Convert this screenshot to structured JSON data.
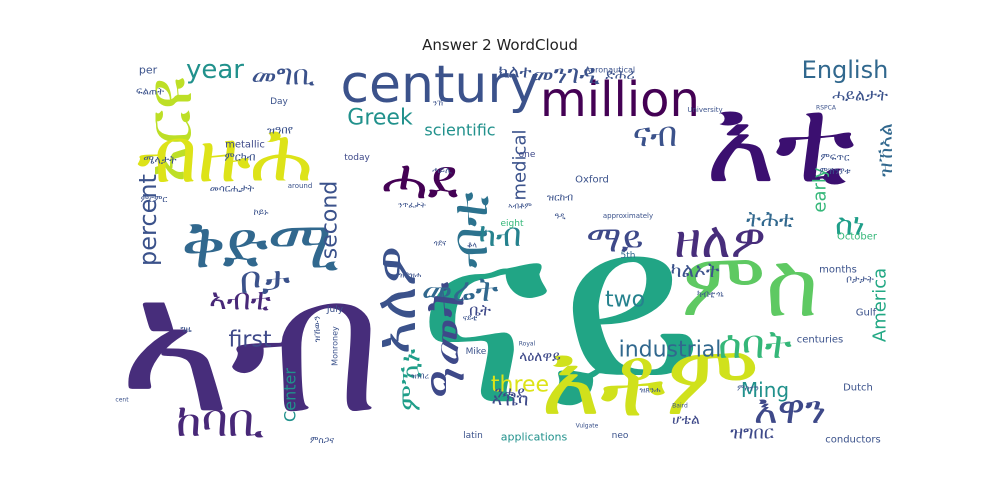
{
  "title": "Answer 2 WordCloud",
  "chart_data": {
    "type": "wordcloud",
    "title": "Answer 2 WordCloud",
    "words": [
      {
        "text": "ናይ",
        "weight": 100,
        "color": "#21a585"
      },
      {
        "text": "እቲ",
        "weight": 46,
        "color": "#3b0f70"
      },
      {
        "text": "ኣብ",
        "weight": 62,
        "color": "#472d7b"
      },
      {
        "text": "እቶም",
        "weight": 40,
        "color": "#d0e11c"
      },
      {
        "text": "ምስ",
        "weight": 34,
        "color": "#5ec962"
      },
      {
        "text": "century",
        "weight": 32,
        "color": "#3b528b"
      },
      {
        "text": "million",
        "weight": 26,
        "color": "#440154"
      },
      {
        "text": "ቅድሚ",
        "weight": 28,
        "color": "#31688e"
      },
      {
        "text": "ሓደ",
        "weight": 24,
        "color": "#440154"
      },
      {
        "text": "ዘለዎ",
        "weight": 22,
        "color": "#472d7b"
      },
      {
        "text": "ኣለዎ",
        "weight": 22,
        "color": "#3b528b"
      },
      {
        "text": "ከባቢ",
        "weight": 20,
        "color": "#482878"
      },
      {
        "text": "እዋን",
        "weight": 18,
        "color": "#3e4989"
      },
      {
        "text": "ሰባት",
        "weight": 18,
        "color": "#35b779"
      },
      {
        "text": "ኣርዩ",
        "weight": 24,
        "color": "#bddf26"
      },
      {
        "text": "ብዙሕ",
        "weight": 20,
        "color": "#dde318"
      },
      {
        "text": "ዓመት",
        "weight": 18,
        "color": "#3e4989"
      },
      {
        "text": "ብቲ",
        "weight": 16,
        "color": "#2c728e"
      },
      {
        "text": "ናብ",
        "weight": 14,
        "color": "#3b528b"
      },
      {
        "text": "ካብ",
        "weight": 14,
        "color": "#26828e"
      },
      {
        "text": "ማይ",
        "weight": 14,
        "color": "#3e4989"
      },
      {
        "text": "መሬት",
        "weight": 12,
        "color": "#31688e"
      },
      {
        "text": "ምዃኑ",
        "weight": 12,
        "color": "#1f9e89"
      },
      {
        "text": "ስነ",
        "weight": 12,
        "color": "#1f9e89"
      },
      {
        "text": "ኣብቲ",
        "weight": 10,
        "color": "#482878"
      },
      {
        "text": "ቦታ",
        "weight": 10,
        "color": "#3b528b"
      },
      {
        "text": "English",
        "weight": 11,
        "color": "#31688e"
      },
      {
        "text": "year",
        "weight": 10,
        "color": "#21918c"
      },
      {
        "text": "Greek",
        "weight": 10,
        "color": "#21918c"
      },
      {
        "text": "percent",
        "weight": 9,
        "color": "#3b528b"
      },
      {
        "text": "second",
        "weight": 9,
        "color": "#3b528b"
      },
      {
        "text": "industrial",
        "weight": 9,
        "color": "#31688e"
      },
      {
        "text": "Ming",
        "weight": 9,
        "color": "#21918c"
      },
      {
        "text": "America",
        "weight": 8,
        "color": "#22a884"
      },
      {
        "text": "early",
        "weight": 8,
        "color": "#35b779"
      },
      {
        "text": "medical",
        "weight": 7,
        "color": "#3b528b"
      },
      {
        "text": "first",
        "weight": 8,
        "color": "#3e4989"
      },
      {
        "text": "two",
        "weight": 8,
        "color": "#26828e"
      },
      {
        "text": "three",
        "weight": 8,
        "color": "#dde318"
      },
      {
        "text": "Center",
        "weight": 6,
        "color": "#21918c"
      },
      {
        "text": "scientific",
        "weight": 6,
        "color": "#21918c"
      },
      {
        "text": "Oxford",
        "weight": 4,
        "color": "#3b528b"
      },
      {
        "text": "metallic",
        "weight": 4,
        "color": "#3e4989"
      },
      {
        "text": "applications",
        "weight": 4,
        "color": "#21918c"
      },
      {
        "text": "conductors",
        "weight": 4,
        "color": "#3b528b"
      },
      {
        "text": "centuries",
        "weight": 4,
        "color": "#3b528b"
      },
      {
        "text": "months",
        "weight": 4,
        "color": "#3b528b"
      },
      {
        "text": "October",
        "weight": 4,
        "color": "#35b779"
      },
      {
        "text": "Dutch",
        "weight": 4,
        "color": "#3b528b"
      },
      {
        "text": "Gulf",
        "weight": 4,
        "color": "#3b528b"
      },
      {
        "text": "Mike",
        "weight": 3,
        "color": "#3b528b"
      },
      {
        "text": "5th",
        "weight": 3,
        "color": "#31688e"
      },
      {
        "text": "July",
        "weight": 3,
        "color": "#3b528b"
      },
      {
        "text": "today",
        "weight": 3,
        "color": "#3e4989"
      },
      {
        "text": "one",
        "weight": 3,
        "color": "#3e4989"
      },
      {
        "text": "eight",
        "weight": 3,
        "color": "#35b779"
      },
      {
        "text": "latin",
        "weight": 3,
        "color": "#3b528b"
      },
      {
        "text": "neo",
        "weight": 3,
        "color": "#3b528b"
      },
      {
        "text": "Day",
        "weight": 3,
        "color": "#3b528b"
      },
      {
        "text": "per",
        "weight": 4,
        "color": "#3b528b"
      },
      {
        "text": "Monroney",
        "weight": 3,
        "color": "#3b528b"
      },
      {
        "text": "Aeronautical",
        "weight": 3,
        "color": "#3b528b"
      },
      {
        "text": "University",
        "weight": 2,
        "color": "#3b528b"
      },
      {
        "text": "around",
        "weight": 2,
        "color": "#3b528b"
      },
      {
        "text": "approximately",
        "weight": 2,
        "color": "#3b528b"
      },
      {
        "text": "Vulgate",
        "weight": 2,
        "color": "#3b528b"
      },
      {
        "text": "Baird",
        "weight": 2,
        "color": "#3b528b"
      },
      {
        "text": "Royal",
        "weight": 2,
        "color": "#3b528b"
      },
      {
        "text": "RSPCA",
        "weight": 2,
        "color": "#3b528b"
      },
      {
        "text": "cent",
        "weight": 2,
        "color": "#3b528b"
      },
      {
        "text": "መግቢ",
        "weight": 10,
        "color": "#3b528b"
      },
      {
        "text": "መንገዲ",
        "weight": 10,
        "color": "#3b528b"
      },
      {
        "text": "ክልተ",
        "weight": 8,
        "color": "#3b528b"
      },
      {
        "text": "ድሕሪ",
        "weight": 6,
        "color": "#3b528b"
      },
      {
        "text": "ሓይልታት",
        "weight": 7,
        "color": "#3b528b"
      },
      {
        "text": "ዝኸኣል",
        "weight": 8,
        "color": "#31688e"
      },
      {
        "text": "ትሕቲ",
        "weight": 8,
        "color": "#31688e"
      },
      {
        "text": "ካልኦት",
        "weight": 8,
        "color": "#3b528b"
      },
      {
        "text": "ቤት",
        "weight": 8,
        "color": "#3e4989"
      },
      {
        "text": "ኣኼባ",
        "weight": 8,
        "color": "#3e4989"
      },
      {
        "text": "ዝግበር",
        "weight": 8,
        "color": "#3e4989"
      },
      {
        "text": "ሆቴል",
        "weight": 6,
        "color": "#3e4989"
      },
      {
        "text": "ላዕለዋይ",
        "weight": 6,
        "color": "#3e4989"
      },
      {
        "text": "ንሓደ",
        "weight": 6,
        "color": "#3e4989"
      },
      {
        "text": "ዝርከብ",
        "weight": 5,
        "color": "#3b528b"
      },
      {
        "text": "ሜላታት",
        "weight": 5,
        "color": "#3b528b"
      },
      {
        "text": "ምርካብ",
        "weight": 4,
        "color": "#3b528b"
      },
      {
        "text": "መሳርሒታት",
        "weight": 4,
        "color": "#3b528b"
      },
      {
        "text": "ንጥፈታት",
        "weight": 4,
        "color": "#3b528b"
      },
      {
        "text": "ዝኸውን",
        "weight": 4,
        "color": "#3b528b"
      },
      {
        "text": "ቦታታት",
        "weight": 4,
        "color": "#3b528b"
      },
      {
        "text": "ካብቲ",
        "weight": 4,
        "color": "#3b528b"
      },
      {
        "text": "ኣብቶም",
        "weight": 4,
        "color": "#3b528b"
      },
      {
        "text": "ምስተን",
        "weight": 4,
        "color": "#3b528b"
      },
      {
        "text": "ዝበዝሐ",
        "weight": 4,
        "color": "#3b528b"
      },
      {
        "text": "ናይቲ",
        "weight": 4,
        "color": "#3b528b"
      },
      {
        "text": "ዝዓበየ",
        "weight": 5,
        "color": "#3b528b"
      },
      {
        "text": "ምፍጥር",
        "weight": 4,
        "color": "#3b528b"
      },
      {
        "text": "ምኽንያቱ",
        "weight": 4,
        "color": "#3b528b"
      },
      {
        "text": "ፍልጠት",
        "weight": 4,
        "color": "#3b528b"
      },
      {
        "text": "ጎደና",
        "weight": 4,
        "color": "#3b528b"
      },
      {
        "text": "ምርምር",
        "weight": 4,
        "color": "#3b528b"
      },
      {
        "text": "ዝጸንሐ",
        "weight": 3,
        "color": "#3b528b"
      },
      {
        "text": "ዝነበረ",
        "weight": 3,
        "color": "#3b528b"
      },
      {
        "text": "ዓዲ",
        "weight": 3,
        "color": "#3b528b"
      },
      {
        "text": "ንኸ",
        "weight": 3,
        "color": "#3b528b"
      },
      {
        "text": "ግዜ",
        "weight": 3,
        "color": "#3b528b"
      },
      {
        "text": "ሓይሊ",
        "weight": 3,
        "color": "#3b528b"
      },
      {
        "text": "ኮይኑ",
        "weight": 3,
        "color": "#3b528b"
      },
      {
        "text": "ጎኒ",
        "weight": 3,
        "color": "#3b528b"
      },
      {
        "text": "ቆላ",
        "weight": 3,
        "color": "#3b528b"
      },
      {
        "text": "ምስጋና",
        "weight": 3,
        "color": "#3b528b"
      }
    ]
  }
}
